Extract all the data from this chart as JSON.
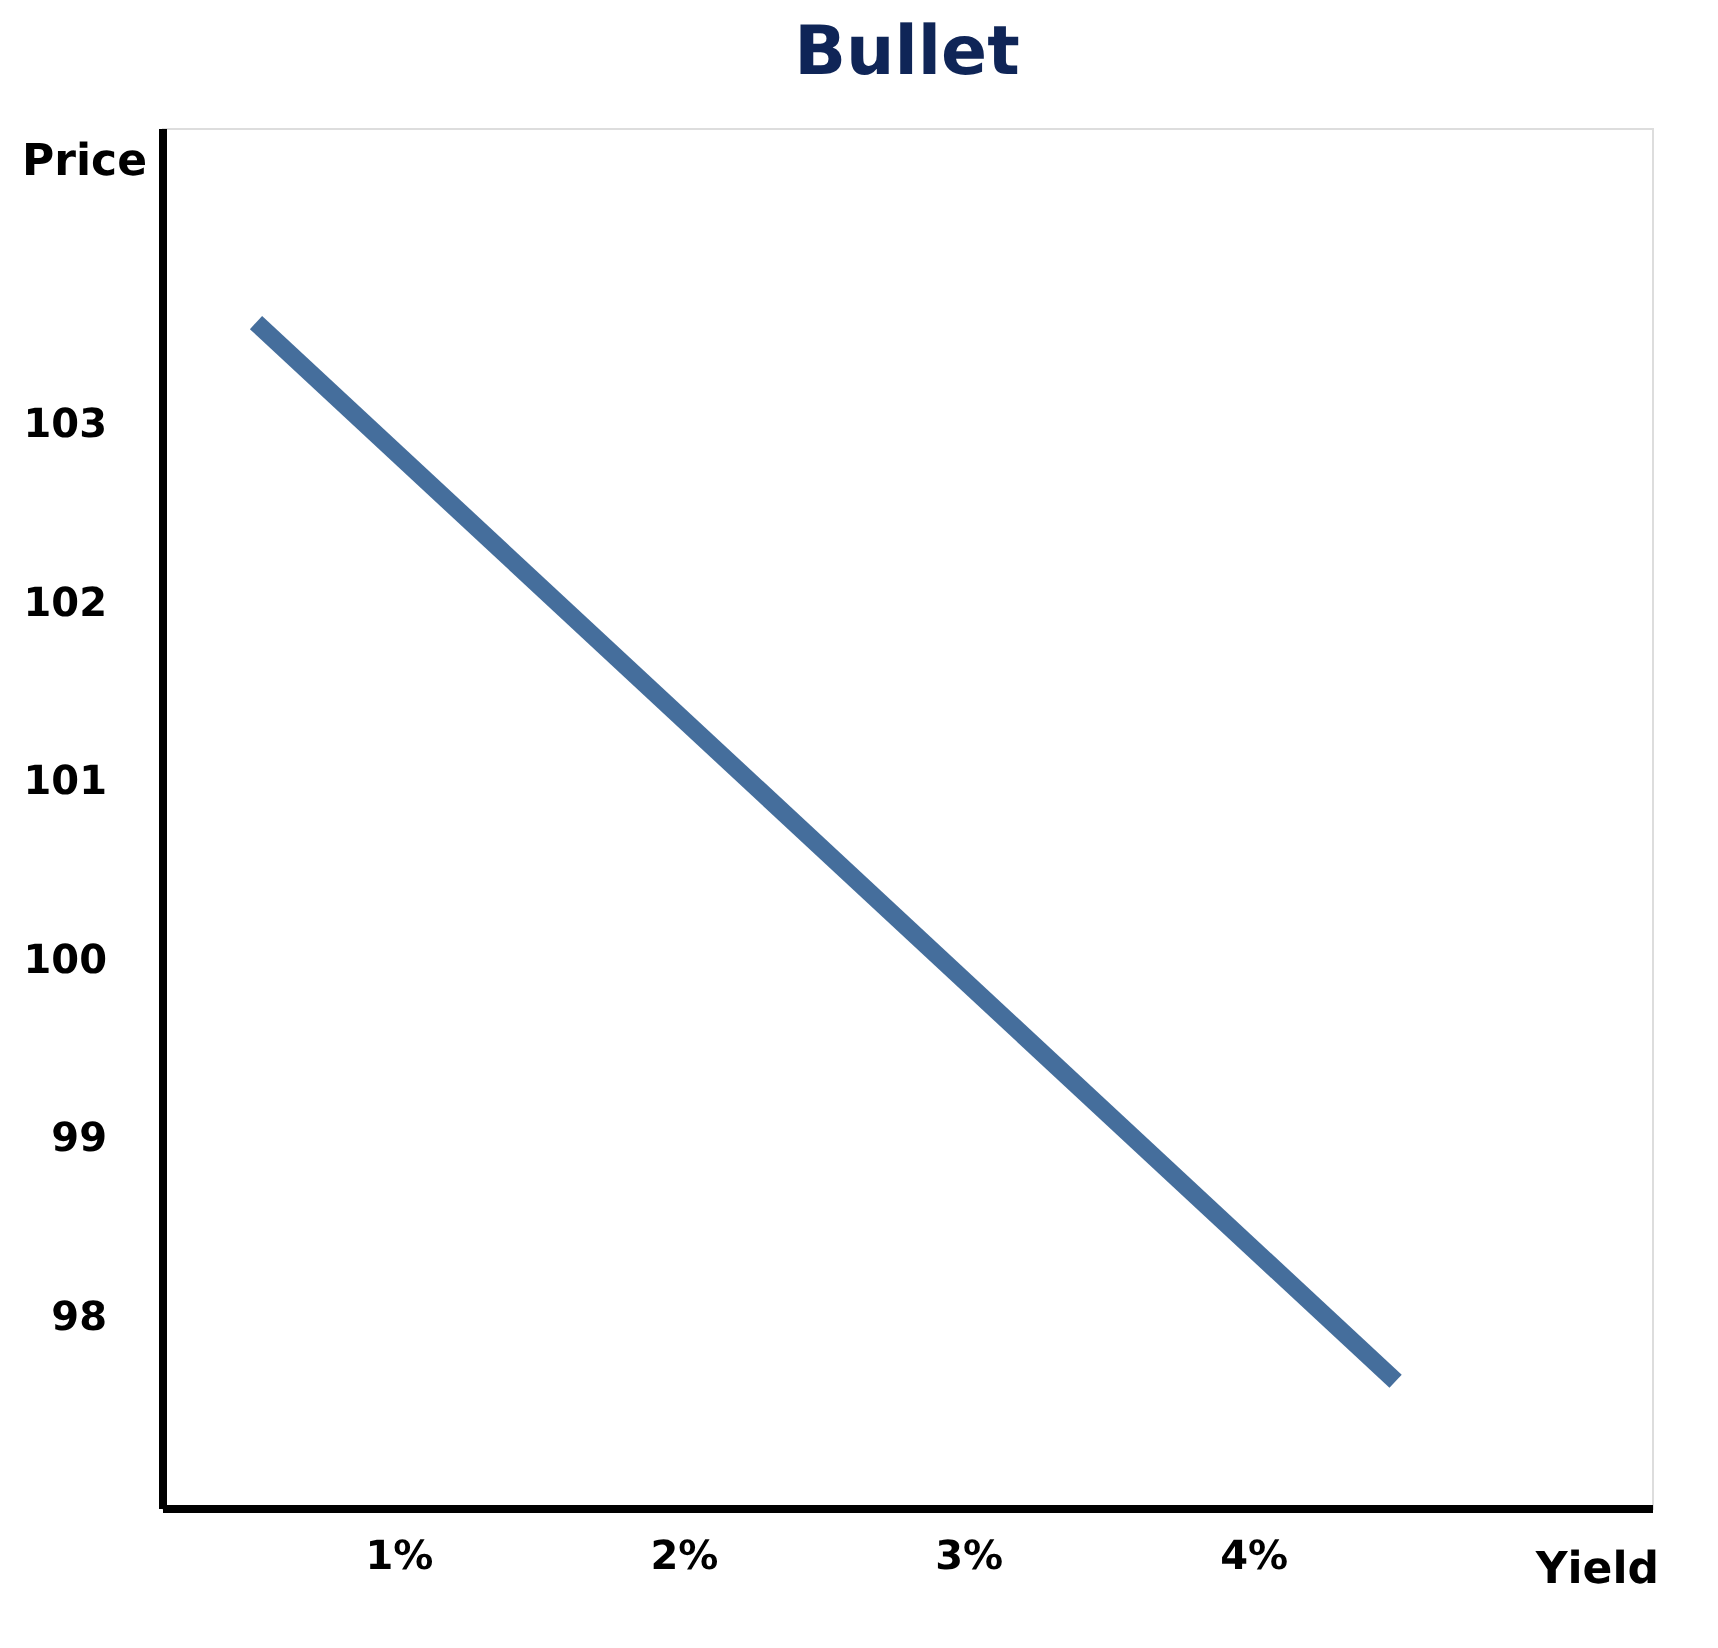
{
  "chart_data": {
    "type": "line",
    "title": "Bullet",
    "xlabel": "Yield",
    "ylabel": "Price",
    "x": [
      0.5,
      4.5
    ],
    "series": [
      {
        "color": "#456e9c",
        "values": [
          103.57,
          97.64
        ]
      }
    ],
    "xlim": [
      0.17,
      5.4
    ],
    "ylim": [
      96.93,
      104.66
    ],
    "xticks": [
      {
        "value": 1,
        "label": "1%"
      },
      {
        "value": 2,
        "label": "2%"
      },
      {
        "value": 3,
        "label": "3%"
      },
      {
        "value": 4,
        "label": "4%"
      }
    ],
    "yticks": [
      98,
      99,
      100,
      101,
      102,
      103
    ],
    "grid": false,
    "marker": "none",
    "line_style": "solid"
  }
}
